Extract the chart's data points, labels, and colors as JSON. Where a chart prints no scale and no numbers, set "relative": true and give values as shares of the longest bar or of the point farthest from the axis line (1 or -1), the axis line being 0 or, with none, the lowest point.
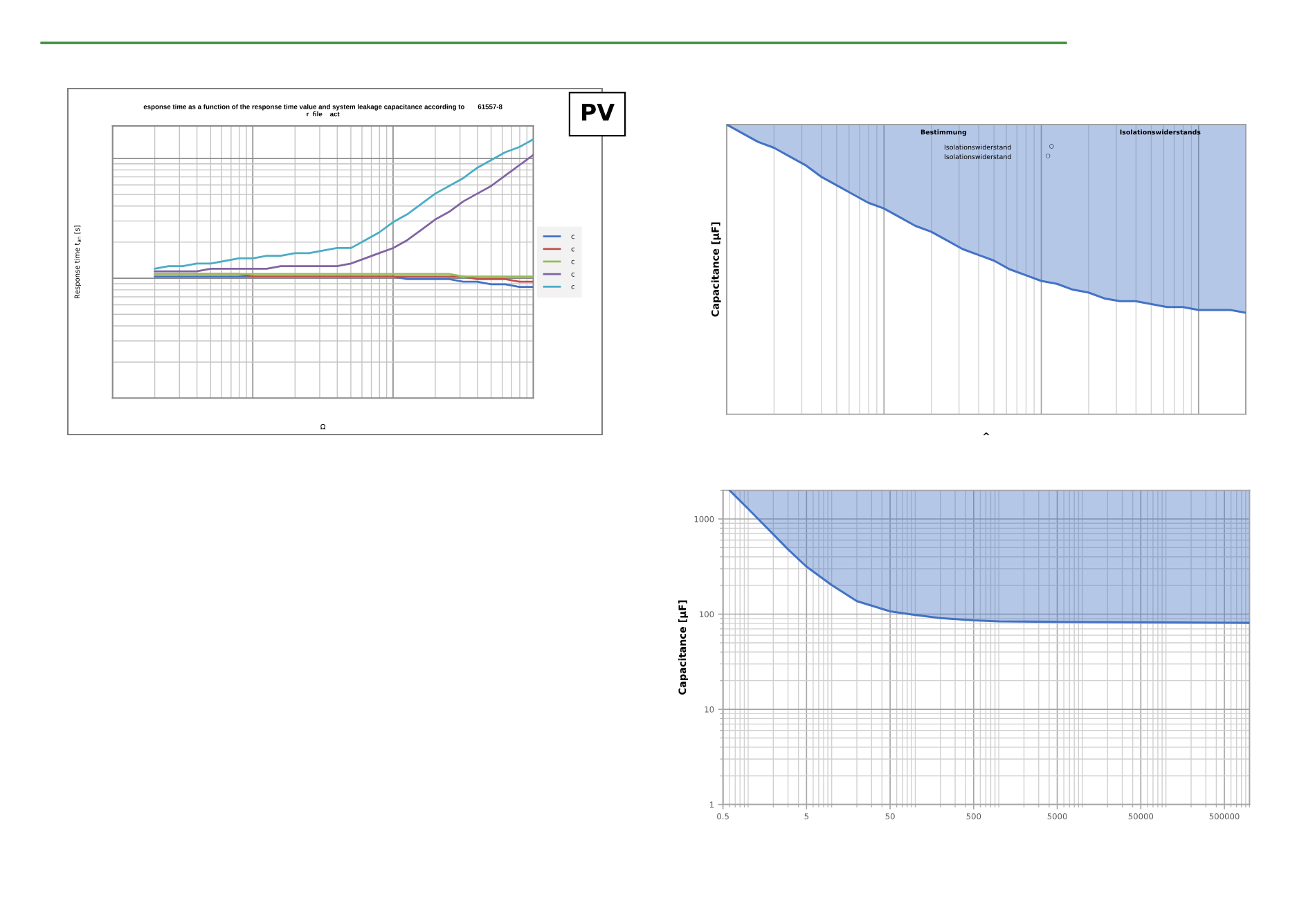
{
  "chart_data": [
    {
      "type": "line",
      "title": "esponse time as a function of the response time value and system leakage capacitance according to       61557-8\nr  file    act",
      "xlabel": "Ω",
      "ylabel": "Response time t$_{an}$ [s]",
      "relative": true,
      "tick_labels": false,
      "grid": true,
      "legend": "right",
      "annotations": [
        "PV"
      ],
      "categories": [
        null,
        null,
        null,
        null,
        null,
        null,
        null,
        null,
        null,
        null,
        null,
        null,
        null,
        null,
        null,
        null,
        null,
        null,
        null,
        null,
        null,
        null,
        null,
        null,
        null,
        null,
        null,
        null,
        null,
        null,
        null
      ],
      "series": [
        {
          "name": "c",
          "color": "#4472c4",
          "values": [
            null,
            null,
            null,
            0.47,
            0.47,
            0.47,
            0.47,
            0.47,
            0.47,
            0.47,
            0.47,
            0.47,
            0.47,
            0.47,
            0.47,
            0.47,
            0.47,
            0.47,
            0.47,
            0.47,
            0.47,
            0.46,
            0.46,
            0.46,
            0.46,
            0.45,
            0.45,
            0.44,
            0.44,
            0.43,
            0.43
          ]
        },
        {
          "name": "c",
          "color": "#c0504d",
          "values": [
            null,
            null,
            null,
            0.48,
            0.48,
            0.48,
            0.48,
            0.48,
            0.48,
            0.48,
            0.47,
            0.47,
            0.47,
            0.47,
            0.47,
            0.47,
            0.47,
            0.47,
            0.47,
            0.47,
            0.47,
            0.47,
            0.47,
            0.47,
            0.47,
            0.47,
            0.46,
            0.46,
            0.46,
            0.45,
            0.45
          ]
        },
        {
          "name": "c",
          "color": "#9bbb59",
          "values": [
            null,
            null,
            null,
            0.48,
            0.48,
            0.48,
            0.48,
            0.48,
            0.48,
            0.48,
            0.48,
            0.48,
            0.48,
            0.48,
            0.48,
            0.48,
            0.48,
            0.48,
            0.48,
            0.48,
            0.48,
            0.48,
            0.48,
            0.48,
            0.48,
            0.47,
            0.47,
            0.47,
            0.47,
            0.47,
            0.47
          ]
        },
        {
          "name": "c",
          "color": "#8064a2",
          "values": [
            null,
            null,
            null,
            0.49,
            0.49,
            0.49,
            0.49,
            0.5,
            0.5,
            0.5,
            0.5,
            0.5,
            0.51,
            0.51,
            0.51,
            0.51,
            0.51,
            0.52,
            0.54,
            0.56,
            0.58,
            0.61,
            0.65,
            0.69,
            0.72,
            0.76,
            0.79,
            0.82,
            0.86,
            0.9,
            0.94
          ]
        },
        {
          "name": "c",
          "color": "#4bacc6",
          "values": [
            null,
            null,
            null,
            0.5,
            0.51,
            0.51,
            0.52,
            0.52,
            0.53,
            0.54,
            0.54,
            0.55,
            0.55,
            0.56,
            0.56,
            0.57,
            0.58,
            0.58,
            0.61,
            0.64,
            0.68,
            0.71,
            0.75,
            0.79,
            0.82,
            0.85,
            0.89,
            0.92,
            0.95,
            0.97,
            1
          ]
        }
      ]
    },
    {
      "type": "line",
      "xlabel": "^",
      "ylabel": "Capacitance [µF]",
      "relative": true,
      "tick_labels": false,
      "grid": "x",
      "annotations": [
        "Bestimmung",
        "Isolationswiderstands",
        "Isolationswiderstand",
        "○",
        "Isolationswiderstand",
        "○"
      ],
      "categories": [
        null,
        null,
        null,
        null,
        null,
        null,
        null,
        null,
        null,
        null,
        null,
        null,
        null,
        null,
        null,
        null,
        null,
        null,
        null,
        null,
        null,
        null,
        null,
        null,
        null,
        null,
        null,
        null,
        null,
        null,
        null,
        null,
        null,
        null
      ],
      "series": [
        {
          "color": "#4472c4",
          "values": [
            1,
            0.97,
            0.94,
            0.92,
            0.89,
            0.86,
            0.82,
            0.79,
            0.76,
            0.73,
            0.71,
            0.68,
            0.65,
            0.63,
            0.6,
            0.57,
            0.55,
            0.53,
            0.5,
            0.48,
            0.46,
            0.45,
            0.43,
            0.42,
            0.4,
            0.39,
            0.39,
            0.38,
            0.37,
            0.37,
            0.36,
            0.36,
            0.36,
            0.35
          ],
          "lower": [
            1,
            0.97,
            0.94,
            0.92,
            0.89,
            0.86,
            0.82,
            0.79,
            0.76,
            0.73,
            0.71,
            0.68,
            0.65,
            0.63,
            0.6,
            0.57,
            0.55,
            0.53,
            0.5,
            0.48,
            0.46,
            0.45,
            0.43,
            0.42,
            0.4,
            0.39,
            0.39,
            0.38,
            0.37,
            0.37,
            0.36,
            0.36,
            0.36,
            0.35
          ],
          "upper": [
            1,
            1,
            1,
            1,
            1,
            1,
            1,
            1,
            1,
            1,
            1,
            1,
            1,
            1,
            1,
            1,
            1,
            1,
            1,
            1,
            1,
            1,
            1,
            1,
            1,
            1,
            1,
            1,
            1,
            1,
            1,
            1,
            1,
            1
          ]
        }
      ]
    },
    {
      "type": "line",
      "ylabel": "Capacitance [µF]",
      "log": "xy",
      "grid": true,
      "x": [
        0.6,
        1,
        2,
        3,
        5,
        10,
        20,
        50,
        100,
        200,
        500,
        1000,
        5000,
        50000,
        1000000
      ],
      "xlim": [
        0.5,
        1000000
      ],
      "xticks": [
        0.5,
        5,
        50,
        500,
        5000,
        50000,
        500000
      ],
      "ylim": [
        1,
        2000
      ],
      "yticks": [
        1,
        10,
        100,
        1000
      ],
      "series": [
        {
          "color": "#4472c4",
          "values": [
            2000,
            1280,
            690,
            480,
            315,
            202,
            137,
            107,
            98,
            91,
            86,
            84,
            83,
            82,
            81
          ],
          "lower": [
            2000,
            1280,
            690,
            480,
            315,
            202,
            137,
            107,
            98,
            91,
            86,
            84,
            83,
            82,
            81
          ],
          "upper": [
            2000,
            2000,
            2000,
            2000,
            2000,
            2000,
            2000,
            2000,
            2000,
            2000,
            2000,
            2000,
            2000,
            2000,
            2000
          ]
        }
      ]
    }
  ]
}
